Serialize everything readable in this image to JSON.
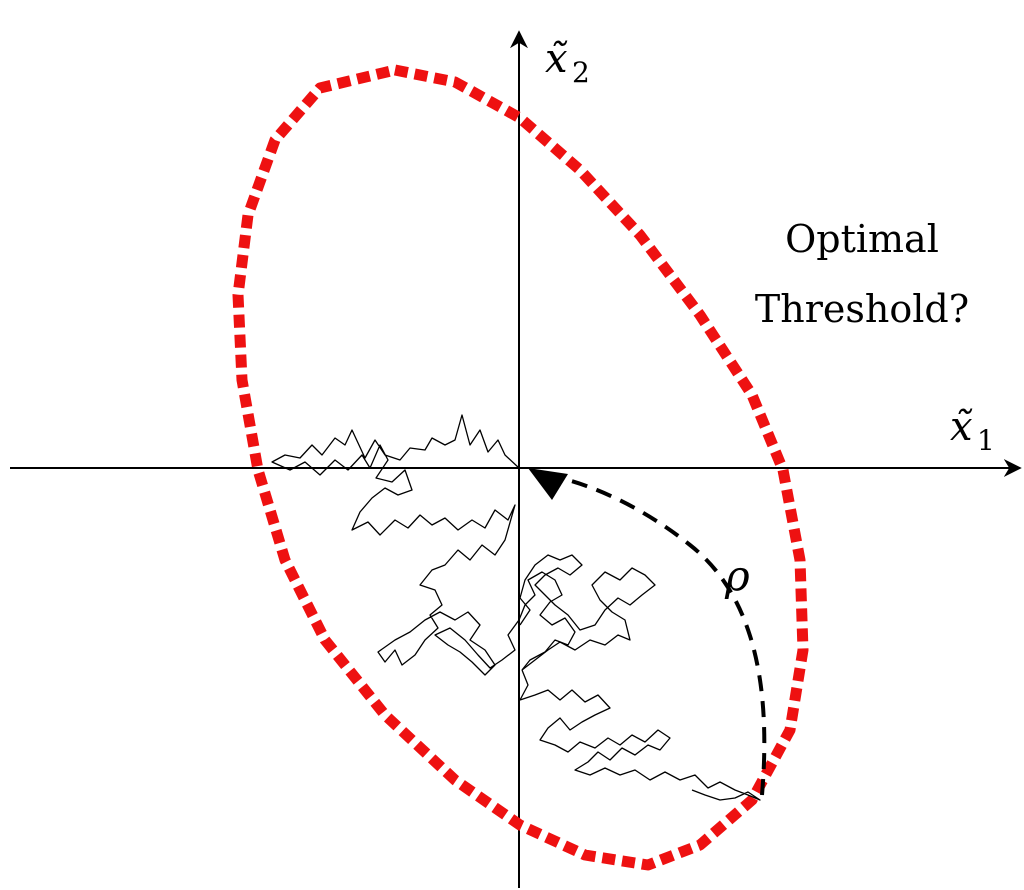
{
  "axes": {
    "x_label": "x̃",
    "x_sub": "1",
    "y_label": "x̃",
    "y_sub": "2"
  },
  "annotation": {
    "line1": "Optimal",
    "line2": "Threshold?"
  },
  "rho_label": "ρ",
  "colors": {
    "threshold": "#ee1111",
    "axes": "#000000",
    "path": "#000000"
  }
}
